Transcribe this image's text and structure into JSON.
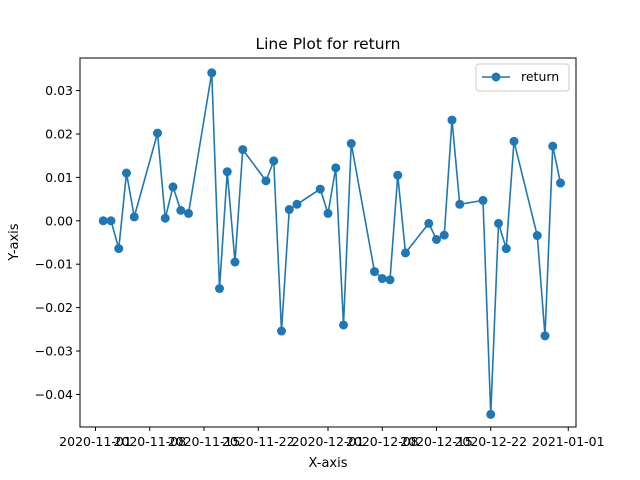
{
  "chart_data": {
    "type": "line",
    "title": "Line Plot for return",
    "xlabel": "X-axis",
    "ylabel": "Y-axis",
    "legend_position": "top-right",
    "grid": false,
    "xlim": [
      "2020-10-30",
      "2021-01-02"
    ],
    "ylim": [
      -0.0475,
      0.0375
    ],
    "x_ticks": [
      "2020-11-01",
      "2020-11-08",
      "2020-11-15",
      "2020-11-22",
      "2020-12-01",
      "2020-12-08",
      "2020-12-15",
      "2020-12-22",
      "2021-01-01"
    ],
    "y_ticks": [
      0.03,
      0.02,
      0.01,
      0.0,
      -0.01,
      -0.02,
      -0.03,
      -0.04
    ],
    "y_tick_labels": [
      "0.03",
      "0.02",
      "0.01",
      "0.00",
      "−0.01",
      "−0.02",
      "−0.03",
      "−0.04"
    ],
    "series": [
      {
        "name": "return",
        "color": "#1f77b4",
        "marker": "circle",
        "points": [
          {
            "x": "2020-11-02",
            "y": 0.0
          },
          {
            "x": "2020-11-03",
            "y": 0.0
          },
          {
            "x": "2020-11-04",
            "y": -0.0064
          },
          {
            "x": "2020-11-05",
            "y": 0.011
          },
          {
            "x": "2020-11-06",
            "y": 0.0009
          },
          {
            "x": "2020-11-09",
            "y": 0.0202
          },
          {
            "x": "2020-11-10",
            "y": 0.0006
          },
          {
            "x": "2020-11-11",
            "y": 0.0078
          },
          {
            "x": "2020-11-12",
            "y": 0.0024
          },
          {
            "x": "2020-11-13",
            "y": 0.0017
          },
          {
            "x": "2020-11-16",
            "y": 0.0341
          },
          {
            "x": "2020-11-17",
            "y": -0.0156
          },
          {
            "x": "2020-11-18",
            "y": 0.0113
          },
          {
            "x": "2020-11-19",
            "y": -0.0095
          },
          {
            "x": "2020-11-20",
            "y": 0.0164
          },
          {
            "x": "2020-11-23",
            "y": 0.0092
          },
          {
            "x": "2020-11-24",
            "y": 0.0138
          },
          {
            "x": "2020-11-25",
            "y": -0.0254
          },
          {
            "x": "2020-11-26",
            "y": 0.0026
          },
          {
            "x": "2020-11-27",
            "y": 0.0038
          },
          {
            "x": "2020-11-30",
            "y": 0.0073
          },
          {
            "x": "2020-12-01",
            "y": 0.0017
          },
          {
            "x": "2020-12-02",
            "y": 0.0122
          },
          {
            "x": "2020-12-03",
            "y": -0.024
          },
          {
            "x": "2020-12-04",
            "y": 0.0178
          },
          {
            "x": "2020-12-07",
            "y": -0.0117
          },
          {
            "x": "2020-12-08",
            "y": -0.0133
          },
          {
            "x": "2020-12-09",
            "y": -0.0136
          },
          {
            "x": "2020-12-10",
            "y": 0.0105
          },
          {
            "x": "2020-12-11",
            "y": -0.0074
          },
          {
            "x": "2020-12-14",
            "y": -0.0006
          },
          {
            "x": "2020-12-15",
            "y": -0.0043
          },
          {
            "x": "2020-12-16",
            "y": -0.0033
          },
          {
            "x": "2020-12-17",
            "y": 0.0232
          },
          {
            "x": "2020-12-18",
            "y": 0.0038
          },
          {
            "x": "2020-12-21",
            "y": 0.0047
          },
          {
            "x": "2020-12-22",
            "y": -0.0446
          },
          {
            "x": "2020-12-23",
            "y": -0.0006
          },
          {
            "x": "2020-12-24",
            "y": -0.0064
          },
          {
            "x": "2020-12-25",
            "y": 0.0183
          },
          {
            "x": "2020-12-28",
            "y": -0.0034
          },
          {
            "x": "2020-12-29",
            "y": -0.0265
          },
          {
            "x": "2020-12-30",
            "y": 0.0172
          },
          {
            "x": "2020-12-31",
            "y": 0.0087
          }
        ]
      }
    ]
  }
}
